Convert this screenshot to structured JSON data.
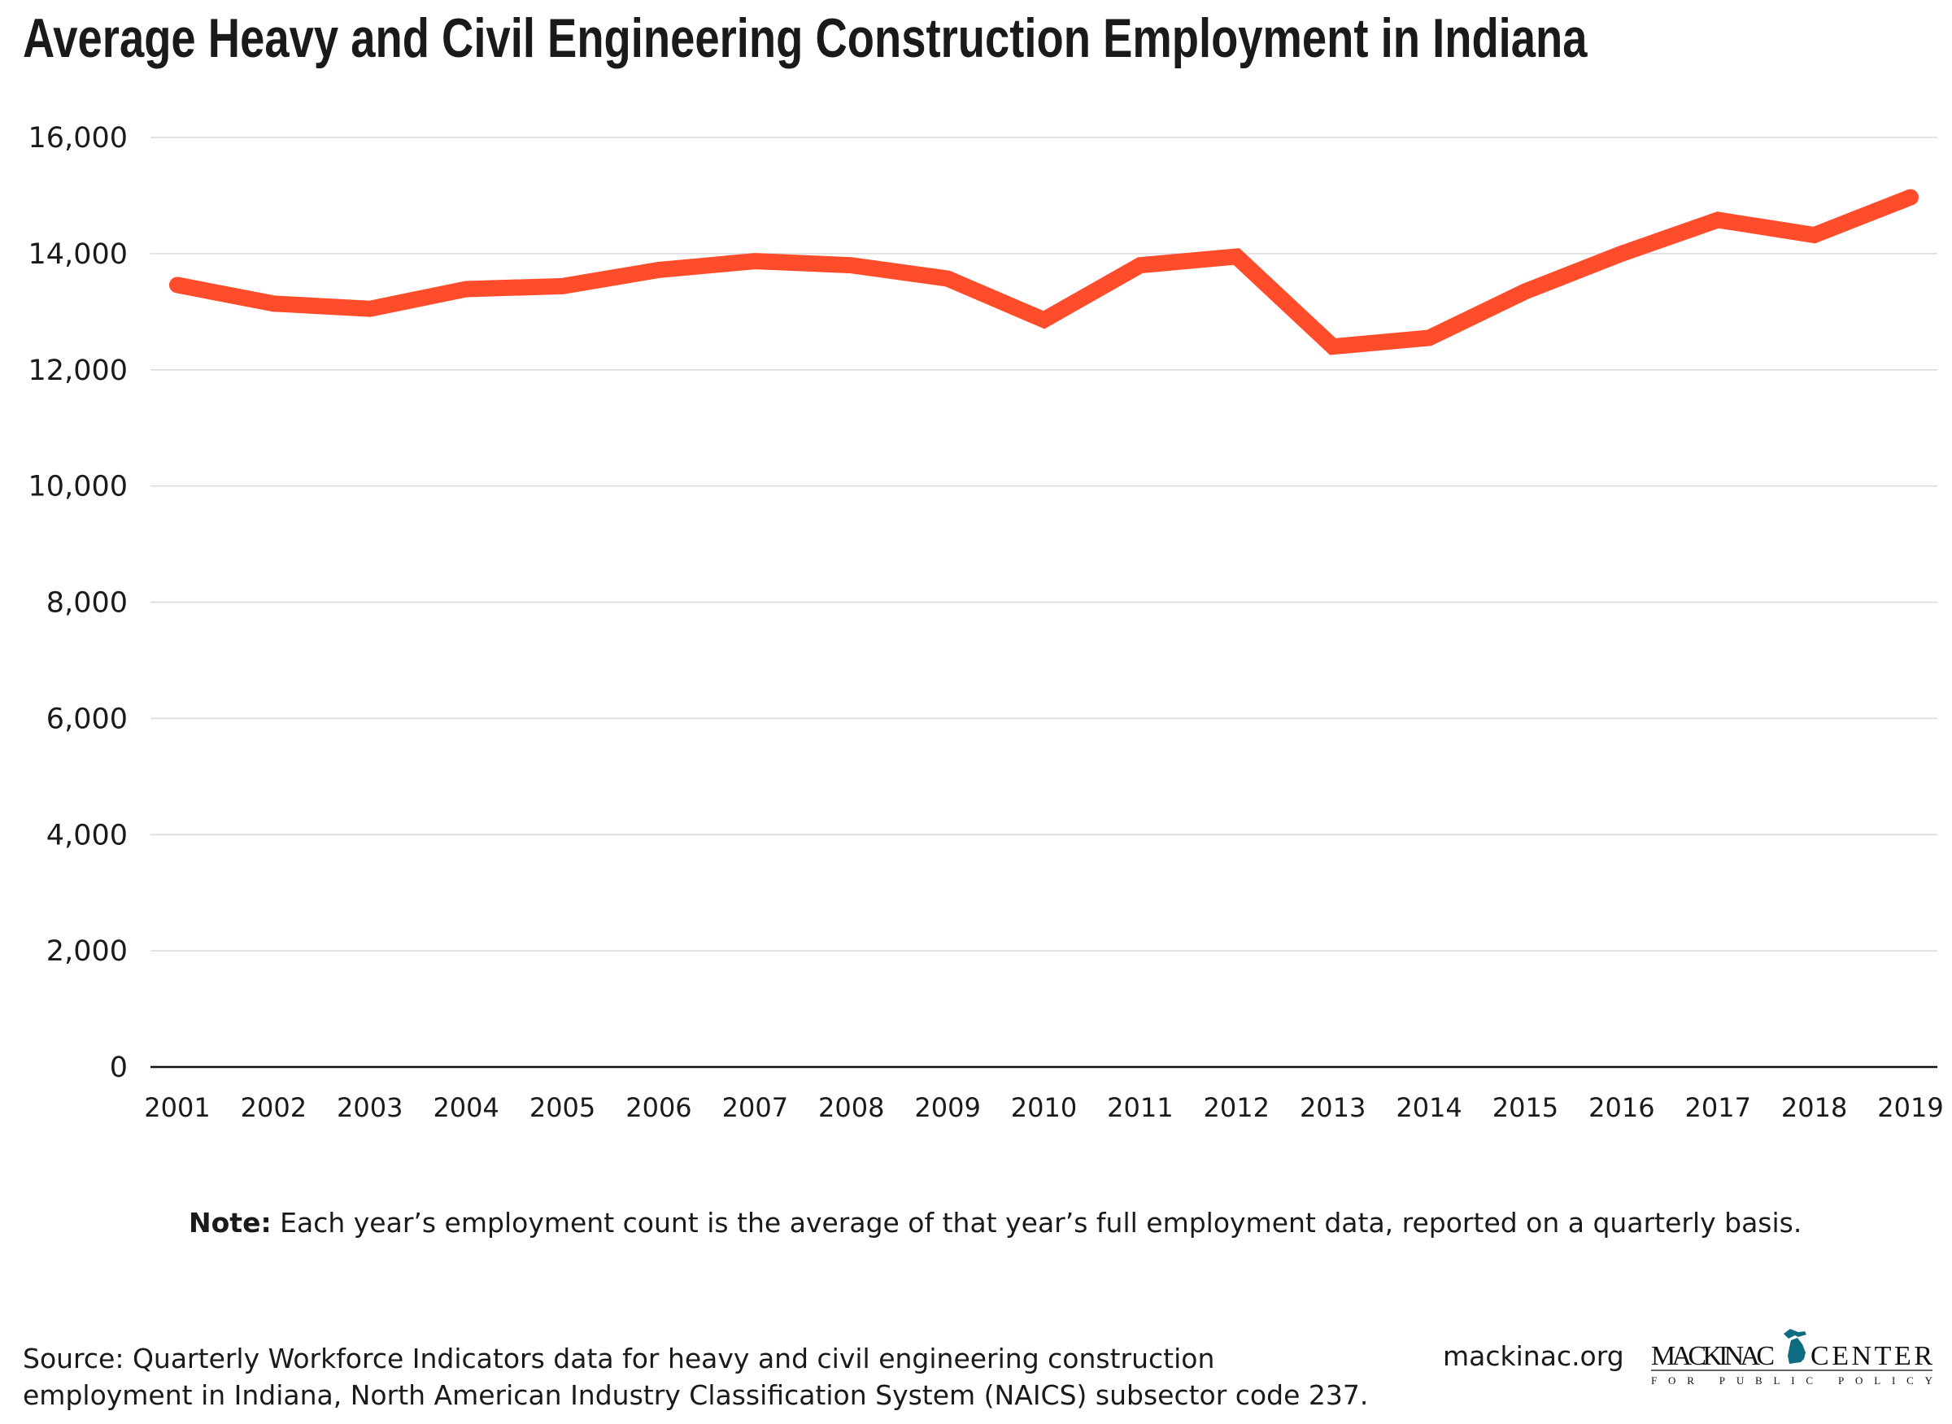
{
  "title": "Average Heavy and Civil Engineering Construction Employment in Indiana",
  "chart_data": {
    "type": "line",
    "title": "Average Heavy and Civil Engineering Construction Employment in Indiana",
    "xlabel": "",
    "ylabel": "",
    "categories": [
      "2001",
      "2002",
      "2003",
      "2004",
      "2005",
      "2006",
      "2007",
      "2008",
      "2009",
      "2010",
      "2011",
      "2012",
      "2013",
      "2014",
      "2015",
      "2016",
      "2017",
      "2018",
      "2019"
    ],
    "values": [
      13460,
      13140,
      13050,
      13390,
      13440,
      13720,
      13870,
      13800,
      13570,
      12860,
      13800,
      13950,
      12400,
      12550,
      13350,
      14000,
      14580,
      14320,
      14970
    ],
    "ylim": [
      0,
      16000
    ],
    "yticks": [
      "0",
      "2,000",
      "4,000",
      "6,000",
      "8,000",
      "10,000",
      "12,000",
      "14,000",
      "16,000"
    ],
    "grid": true,
    "legend": "none",
    "line_color": "#ff4c2b"
  },
  "note": {
    "label": "Note:",
    "text": " Each year’s employment count is the average of that year’s full employment data, reported on a quarterly basis."
  },
  "source": {
    "line1": "Source: Quarterly Workforce Indicators data for heavy and civil engineering construction",
    "line2": "employment in Indiana, North American Industry Classification System (NAICS) subsector code 237."
  },
  "site": "mackinac.org",
  "logo": {
    "text_left": "MACKINAC",
    "text_right": "CENTER",
    "subtitle": "FOR PUBLIC POLICY",
    "color": "#0f6c80"
  }
}
